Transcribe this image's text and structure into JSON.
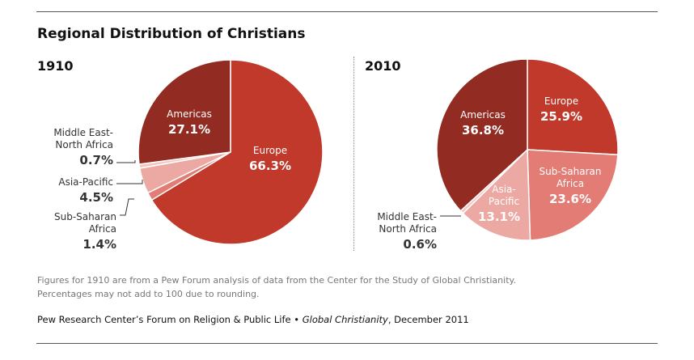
{
  "title": "Regional Distribution of Christians",
  "note_line1": "Figures for 1910 are from a Pew Forum analysis of data from the Center for the Study of Global Christianity.",
  "note_line2": "Percentages may not add to 100 due to rounding.",
  "credit_plain": "Pew Research Center’s Forum on Religion & Public Life • ",
  "credit_italic": "Global Christianity",
  "credit_tail": ", December 2011",
  "colors": {
    "europe": "#c0392b",
    "americas": "#922b21",
    "mena": "#f5c6c0",
    "asia": "#eca9a3",
    "ssa": "#e27c74"
  },
  "chart_data": [
    {
      "type": "pie",
      "year": "1910",
      "slices": [
        {
          "key": "europe",
          "name": "Europe",
          "label_lines": [
            "Europe"
          ],
          "value": 66.3,
          "value_label": "66.3%"
        },
        {
          "key": "ssa",
          "name": "Sub-Saharan Africa",
          "label_lines": [
            "Sub-Saharan",
            "Africa"
          ],
          "value": 1.4,
          "value_label": "1.4%"
        },
        {
          "key": "asia",
          "name": "Asia-Pacific",
          "label_lines": [
            "Asia-Pacific"
          ],
          "value": 4.5,
          "value_label": "4.5%"
        },
        {
          "key": "mena",
          "name": "Middle East-North Africa",
          "label_lines": [
            "Middle East-",
            "North Africa"
          ],
          "value": 0.7,
          "value_label": "0.7%"
        },
        {
          "key": "americas",
          "name": "Americas",
          "label_lines": [
            "Americas"
          ],
          "value": 27.1,
          "value_label": "27.1%"
        }
      ]
    },
    {
      "type": "pie",
      "year": "2010",
      "slices": [
        {
          "key": "europe",
          "name": "Europe",
          "label_lines": [
            "Europe"
          ],
          "value": 25.9,
          "value_label": "25.9%"
        },
        {
          "key": "ssa",
          "name": "Sub-Saharan Africa",
          "label_lines": [
            "Sub-Saharan",
            "Africa"
          ],
          "value": 23.6,
          "value_label": "23.6%"
        },
        {
          "key": "asia",
          "name": "Asia-Pacific",
          "label_lines": [
            "Asia-",
            "Pacific"
          ],
          "value": 13.1,
          "value_label": "13.1%"
        },
        {
          "key": "mena",
          "name": "Middle East-North Africa",
          "label_lines": [
            "Middle East-",
            "North Africa"
          ],
          "value": 0.6,
          "value_label": "0.6%"
        },
        {
          "key": "americas",
          "name": "Americas",
          "label_lines": [
            "Americas"
          ],
          "value": 36.8,
          "value_label": "36.8%"
        }
      ]
    }
  ]
}
